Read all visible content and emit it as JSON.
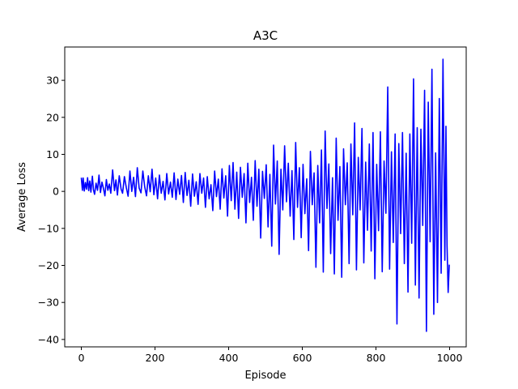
{
  "chart_data": {
    "type": "line",
    "title": "A3C",
    "xlabel": "Episode",
    "ylabel": "Average Loss",
    "xlim": [
      -45,
      1045
    ],
    "ylim": [
      -42,
      39
    ],
    "xticks": [
      0,
      200,
      400,
      600,
      800,
      1000
    ],
    "yticks": [
      -40,
      -30,
      -20,
      -10,
      0,
      10,
      20,
      30
    ],
    "grid": false,
    "legend": "none",
    "series": [
      {
        "color": "#0000ff",
        "points": [
          [
            0,
            3.7
          ],
          [
            3,
            0.3
          ],
          [
            5,
            3.6
          ],
          [
            8,
            0.1
          ],
          [
            11,
            2.4
          ],
          [
            14,
            0.6
          ],
          [
            17,
            3.7
          ],
          [
            20,
            0.2
          ],
          [
            23,
            2.8
          ],
          [
            26,
            -0.2
          ],
          [
            30,
            4.1
          ],
          [
            33,
            0.4
          ],
          [
            36,
            -0.8
          ],
          [
            40,
            2.2
          ],
          [
            44,
            0.3
          ],
          [
            48,
            4.4
          ],
          [
            52,
            -0.3
          ],
          [
            56,
            2.5
          ],
          [
            60,
            0.8
          ],
          [
            64,
            -1.2
          ],
          [
            68,
            3.2
          ],
          [
            72,
            0.3
          ],
          [
            76,
            2.0
          ],
          [
            80,
            -0.5
          ],
          [
            85,
            5.8
          ],
          [
            90,
            0.2
          ],
          [
            94,
            3.1
          ],
          [
            98,
            -1.0
          ],
          [
            103,
            4.2
          ],
          [
            108,
            0.6
          ],
          [
            112,
            -0.5
          ],
          [
            117,
            4.0
          ],
          [
            122,
            1.1
          ],
          [
            127,
            -1.3
          ],
          [
            132,
            5.5
          ],
          [
            137,
            0.0
          ],
          [
            142,
            3.8
          ],
          [
            147,
            -1.4
          ],
          [
            152,
            6.4
          ],
          [
            157,
            0.9
          ],
          [
            162,
            -0.4
          ],
          [
            167,
            5.5
          ],
          [
            172,
            1.3
          ],
          [
            177,
            -1.2
          ],
          [
            182,
            4.2
          ],
          [
            187,
            -0.1
          ],
          [
            192,
            6.0
          ],
          [
            197,
            -0.9
          ],
          [
            202,
            3.6
          ],
          [
            207,
            -2.0
          ],
          [
            212,
            4.4
          ],
          [
            217,
            -0.5
          ],
          [
            222,
            2.7
          ],
          [
            227,
            -2.3
          ],
          [
            232,
            4.8
          ],
          [
            237,
            -0.7
          ],
          [
            242,
            2.5
          ],
          [
            247,
            -1.6
          ],
          [
            252,
            5.0
          ],
          [
            257,
            -2.2
          ],
          [
            262,
            3.3
          ],
          [
            267,
            -0.8
          ],
          [
            272,
            4.3
          ],
          [
            277,
            -3.0
          ],
          [
            282,
            5.1
          ],
          [
            287,
            -1.1
          ],
          [
            292,
            3.0
          ],
          [
            297,
            -4.0
          ],
          [
            302,
            4.7
          ],
          [
            307,
            -1.3
          ],
          [
            312,
            2.6
          ],
          [
            317,
            -3.5
          ],
          [
            322,
            4.8
          ],
          [
            327,
            -0.5
          ],
          [
            332,
            3.6
          ],
          [
            337,
            -4.3
          ],
          [
            342,
            4.0
          ],
          [
            347,
            -2.0
          ],
          [
            352,
            1.8
          ],
          [
            357,
            -5.2
          ],
          [
            362,
            5.5
          ],
          [
            367,
            -1.4
          ],
          [
            372,
            3.3
          ],
          [
            377,
            -4.8
          ],
          [
            382,
            6.1
          ],
          [
            387,
            -1.8
          ],
          [
            392,
            4.2
          ],
          [
            397,
            -6.7
          ],
          [
            402,
            7.0
          ],
          [
            407,
            -2.5
          ],
          [
            412,
            7.8
          ],
          [
            417,
            -4.8
          ],
          [
            422,
            5.2
          ],
          [
            427,
            -7.3
          ],
          [
            432,
            6.5
          ],
          [
            437,
            -1.6
          ],
          [
            442,
            4.8
          ],
          [
            447,
            -8.5
          ],
          [
            452,
            7.6
          ],
          [
            457,
            -3.0
          ],
          [
            462,
            3.8
          ],
          [
            467,
            -7.8
          ],
          [
            472,
            8.3
          ],
          [
            477,
            -4.0
          ],
          [
            482,
            6.0
          ],
          [
            487,
            -12.6
          ],
          [
            492,
            5.4
          ],
          [
            497,
            -1.9
          ],
          [
            502,
            7.2
          ],
          [
            507,
            -9.6
          ],
          [
            512,
            4.6
          ],
          [
            517,
            -14.8
          ],
          [
            522,
            12.5
          ],
          [
            527,
            -3.4
          ],
          [
            532,
            8.2
          ],
          [
            537,
            -17.0
          ],
          [
            542,
            6.0
          ],
          [
            547,
            -5.0
          ],
          [
            552,
            12.3
          ],
          [
            557,
            -2.8
          ],
          [
            562,
            7.6
          ],
          [
            567,
            -6.7
          ],
          [
            572,
            5.6
          ],
          [
            577,
            -13.0
          ],
          [
            582,
            13.2
          ],
          [
            587,
            -4.3
          ],
          [
            592,
            6.4
          ],
          [
            597,
            -12.5
          ],
          [
            602,
            7.3
          ],
          [
            607,
            -6.0
          ],
          [
            612,
            3.4
          ],
          [
            617,
            -16.0
          ],
          [
            622,
            10.8
          ],
          [
            627,
            -3.6
          ],
          [
            632,
            5.0
          ],
          [
            637,
            -20.5
          ],
          [
            642,
            7.0
          ],
          [
            647,
            -8.5
          ],
          [
            652,
            11.2
          ],
          [
            657,
            -21.8
          ],
          [
            662,
            16.3
          ],
          [
            667,
            -4.6
          ],
          [
            672,
            7.4
          ],
          [
            677,
            -16.8
          ],
          [
            682,
            3.7
          ],
          [
            687,
            -22.3
          ],
          [
            692,
            14.4
          ],
          [
            697,
            -7.8
          ],
          [
            702,
            6.7
          ],
          [
            707,
            -23.2
          ],
          [
            712,
            11.5
          ],
          [
            717,
            -3.6
          ],
          [
            722,
            7.7
          ],
          [
            727,
            -19.5
          ],
          [
            732,
            12.8
          ],
          [
            737,
            -6.3
          ],
          [
            742,
            18.5
          ],
          [
            747,
            -21.2
          ],
          [
            752,
            9.2
          ],
          [
            757,
            -5.0
          ],
          [
            762,
            17.0
          ],
          [
            767,
            -19.3
          ],
          [
            772,
            7.9
          ],
          [
            777,
            -10.5
          ],
          [
            782,
            12.8
          ],
          [
            787,
            -16.1
          ],
          [
            792,
            15.9
          ],
          [
            797,
            -23.6
          ],
          [
            802,
            7.3
          ],
          [
            807,
            -10.6
          ],
          [
            812,
            16.1
          ],
          [
            817,
            -21.7
          ],
          [
            822,
            8.2
          ],
          [
            827,
            -5.9
          ],
          [
            832,
            28.2
          ],
          [
            837,
            -21.0
          ],
          [
            842,
            10.7
          ],
          [
            847,
            -13.8
          ],
          [
            852,
            15.5
          ],
          [
            857,
            -35.8
          ],
          [
            862,
            12.9
          ],
          [
            867,
            -11.4
          ],
          [
            872,
            15.9
          ],
          [
            877,
            -19.5
          ],
          [
            882,
            10.3
          ],
          [
            887,
            -27.2
          ],
          [
            892,
            15.5
          ],
          [
            897,
            -14.0
          ],
          [
            902,
            30.4
          ],
          [
            907,
            -25.3
          ],
          [
            912,
            17.2
          ],
          [
            917,
            -28.8
          ],
          [
            922,
            16.8
          ],
          [
            927,
            -9.2
          ],
          [
            932,
            27.3
          ],
          [
            937,
            -37.8
          ],
          [
            942,
            24.1
          ],
          [
            947,
            -13.6
          ],
          [
            952,
            33.0
          ],
          [
            957,
            -33.2
          ],
          [
            962,
            10.4
          ],
          [
            967,
            -30.0
          ],
          [
            972,
            25.1
          ],
          [
            977,
            -22.1
          ],
          [
            982,
            35.7
          ],
          [
            987,
            -18.6
          ],
          [
            990,
            17.6
          ],
          [
            993,
            -14.7
          ],
          [
            996,
            -27.3
          ],
          [
            999,
            -19.8
          ]
        ]
      }
    ]
  }
}
